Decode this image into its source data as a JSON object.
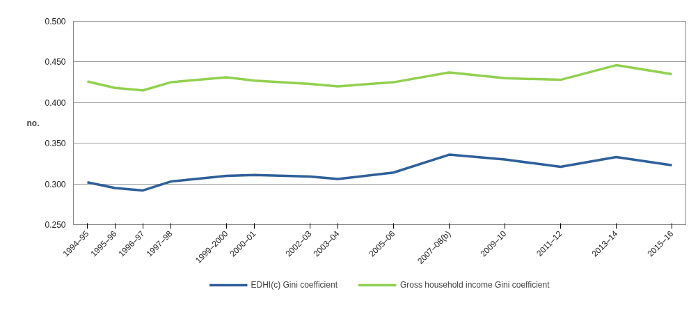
{
  "chart_data": {
    "type": "line",
    "ylabel": "no.",
    "categories": [
      "1994–95",
      "1995–96",
      "1996–97",
      "1997–98",
      null,
      "1999–2000",
      "2000–01",
      null,
      "2002–03",
      "2003–04",
      null,
      "2005–06",
      null,
      "2007–08(b)",
      null,
      "2009–10",
      null,
      "2011–12",
      null,
      "2013–14",
      null,
      "2015–16"
    ],
    "ylim": [
      0.25,
      0.5
    ],
    "yticks": [
      {
        "value": 0.25,
        "label": "0.250"
      },
      {
        "value": 0.3,
        "label": "0.300"
      },
      {
        "value": 0.35,
        "label": "0.350"
      },
      {
        "value": 0.4,
        "label": "0.400"
      },
      {
        "value": 0.45,
        "label": "0.450"
      },
      {
        "value": 0.5,
        "label": "0.500"
      }
    ],
    "series": [
      {
        "name": "EDHI(c) Gini coefficient",
        "color": "#2e5f9a",
        "values": [
          0.302,
          0.295,
          0.292,
          0.303,
          null,
          0.31,
          0.311,
          null,
          0.309,
          0.306,
          null,
          0.314,
          null,
          0.336,
          null,
          0.33,
          null,
          0.321,
          null,
          0.333,
          null,
          0.323
        ]
      },
      {
        "name": "Gross household income Gini coefficient",
        "color": "#92d050",
        "values": [
          0.426,
          0.418,
          0.415,
          0.425,
          null,
          0.431,
          0.427,
          null,
          0.423,
          0.42,
          null,
          0.425,
          null,
          0.437,
          null,
          0.43,
          null,
          0.428,
          null,
          0.446,
          null,
          0.435
        ]
      }
    ],
    "grid": "y",
    "legend": "bottom",
    "marker": "none",
    "line_style": "solid"
  }
}
